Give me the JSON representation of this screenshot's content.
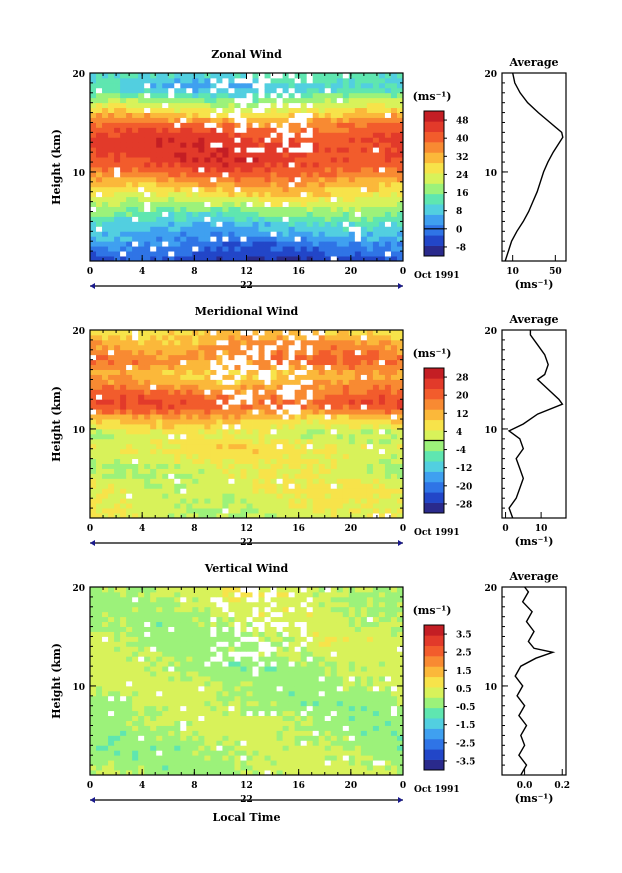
{
  "chart_data": [
    {
      "type": "heatmap",
      "title": "Zonal Wind",
      "ylabel": "Height (km)",
      "xticks": [
        "0",
        "4",
        "8",
        "12",
        "16",
        "20",
        "0"
      ],
      "yticks": [
        "10",
        "20"
      ],
      "xlim": [
        0,
        24
      ],
      "ylim": [
        1,
        20
      ],
      "date_label": "22",
      "month_label": "Oct 1991",
      "colorbar": {
        "unit": "(ms⁻¹)",
        "labels": [
          "48",
          "40",
          "32",
          "24",
          "16",
          "8",
          "0",
          "-8"
        ],
        "min": -12,
        "max": 52,
        "zero_line": 0,
        "colors": [
          "#2a2a8c",
          "#2246c8",
          "#2f74e6",
          "#3fa0f0",
          "#52cfe0",
          "#5fe6b0",
          "#9cf27a",
          "#d8f25a",
          "#f7e34a",
          "#fbb83a",
          "#f88a32",
          "#f25c2c",
          "#e23a2a",
          "#c41e24"
        ]
      },
      "layers": [
        {
          "height": 20,
          "value": 12
        },
        {
          "height": 18.5,
          "value": 8
        },
        {
          "height": 17.5,
          "value": 16
        },
        {
          "height": 16,
          "value": 28
        },
        {
          "height": 14.5,
          "value": 40
        },
        {
          "height": 13,
          "value": 45
        },
        {
          "height": 11,
          "value": 44
        },
        {
          "height": 9,
          "value": 34
        },
        {
          "height": 7,
          "value": 22
        },
        {
          "height": 5,
          "value": 10
        },
        {
          "height": 3,
          "value": 2
        },
        {
          "height": 1,
          "value": -6
        }
      ],
      "average_profile": {
        "title": "Average",
        "xlabel": "(ms⁻¹)",
        "xticks": [
          10,
          50
        ],
        "xlim": [
          0,
          60
        ],
        "points": [
          {
            "height": 1,
            "value": 3
          },
          {
            "height": 2,
            "value": 6
          },
          {
            "height": 3,
            "value": 9
          },
          {
            "height": 4,
            "value": 14
          },
          {
            "height": 5,
            "value": 20
          },
          {
            "height": 6,
            "value": 25
          },
          {
            "height": 7,
            "value": 29
          },
          {
            "height": 8,
            "value": 33
          },
          {
            "height": 9,
            "value": 36
          },
          {
            "height": 10,
            "value": 39
          },
          {
            "height": 11,
            "value": 43
          },
          {
            "height": 12,
            "value": 48
          },
          {
            "height": 13,
            "value": 54
          },
          {
            "height": 13.5,
            "value": 57
          },
          {
            "height": 14,
            "value": 56
          },
          {
            "height": 15,
            "value": 45
          },
          {
            "height": 16,
            "value": 34
          },
          {
            "height": 17,
            "value": 24
          },
          {
            "height": 18,
            "value": 17
          },
          {
            "height": 19,
            "value": 12
          },
          {
            "height": 20,
            "value": 10
          }
        ]
      }
    },
    {
      "type": "heatmap",
      "title": "Meridional Wind",
      "ylabel": "Height (km)",
      "xticks": [
        "0",
        "4",
        "8",
        "12",
        "16",
        "20",
        "0"
      ],
      "yticks": [
        "10",
        "20"
      ],
      "xlim": [
        0,
        24
      ],
      "ylim": [
        1,
        20
      ],
      "date_label": "22",
      "month_label": "Oct 1991",
      "colorbar": {
        "unit": "(ms⁻¹)",
        "labels": [
          "28",
          "20",
          "12",
          "4",
          "-4",
          "-12",
          "-20",
          "-28"
        ],
        "min": -32,
        "max": 32,
        "zero_line": 0,
        "colors": [
          "#2a2a8c",
          "#2246c8",
          "#2f74e6",
          "#3fa0f0",
          "#52cfe0",
          "#5fe6b0",
          "#9cf27a",
          "#d8f25a",
          "#f7e34a",
          "#fbb83a",
          "#f88a32",
          "#f25c2c",
          "#e23a2a",
          "#c41e24"
        ]
      },
      "layers": [
        {
          "height": 20,
          "value": 8
        },
        {
          "height": 18.5,
          "value": 14
        },
        {
          "height": 17,
          "value": 18
        },
        {
          "height": 15.5,
          "value": 10
        },
        {
          "height": 14,
          "value": 16
        },
        {
          "height": 12.5,
          "value": 22
        },
        {
          "height": 11,
          "value": 10
        },
        {
          "height": 9.5,
          "value": 2
        },
        {
          "height": 8,
          "value": 6
        },
        {
          "height": 6,
          "value": 2
        },
        {
          "height": 4,
          "value": 4
        },
        {
          "height": 1,
          "value": 2
        }
      ],
      "average_profile": {
        "title": "Average",
        "xlabel": "(ms⁻¹)",
        "xticks": [
          0,
          10
        ],
        "xlim": [
          -1,
          17
        ],
        "points": [
          {
            "height": 1,
            "value": 2
          },
          {
            "height": 2,
            "value": 1
          },
          {
            "height": 3,
            "value": 3
          },
          {
            "height": 4,
            "value": 4
          },
          {
            "height": 5,
            "value": 5
          },
          {
            "height": 6,
            "value": 4
          },
          {
            "height": 7,
            "value": 3
          },
          {
            "height": 8,
            "value": 5
          },
          {
            "height": 9,
            "value": 4
          },
          {
            "height": 9.8,
            "value": 1
          },
          {
            "height": 10.5,
            "value": 5
          },
          {
            "height": 11.5,
            "value": 9
          },
          {
            "height": 12.5,
            "value": 16
          },
          {
            "height": 13,
            "value": 15
          },
          {
            "height": 14,
            "value": 12
          },
          {
            "height": 15,
            "value": 9
          },
          {
            "height": 15.5,
            "value": 11
          },
          {
            "height": 16.5,
            "value": 12
          },
          {
            "height": 17.5,
            "value": 11
          },
          {
            "height": 18.5,
            "value": 9
          },
          {
            "height": 19.5,
            "value": 7
          },
          {
            "height": 20,
            "value": 7
          }
        ]
      }
    },
    {
      "type": "heatmap",
      "title": "Vertical Wind",
      "ylabel": "Height (km)",
      "xlabel": "Local Time",
      "xticks": [
        "0",
        "4",
        "8",
        "12",
        "16",
        "20",
        "0"
      ],
      "yticks": [
        "10",
        "20"
      ],
      "xlim": [
        0,
        24
      ],
      "ylim": [
        1,
        20
      ],
      "date_label": "22",
      "month_label": "Oct 1991",
      "colorbar": {
        "unit": "(ms⁻¹)",
        "labels": [
          "3.5",
          "2.5",
          "1.5",
          "0.5",
          "-0.5",
          "-1.5",
          "-2.5",
          "-3.5"
        ],
        "min": -4,
        "max": 4,
        "colors": [
          "#2a2a8c",
          "#2246c8",
          "#2f74e6",
          "#3fa0f0",
          "#52cfe0",
          "#5fe6b0",
          "#9cf27a",
          "#d8f25a",
          "#f7e34a",
          "#fbb83a",
          "#f88a32",
          "#f25c2c",
          "#e23a2a",
          "#c41e24"
        ]
      },
      "layers": [
        {
          "height": 20,
          "value": 0.2
        },
        {
          "height": 18,
          "value": 0.1
        },
        {
          "height": 16,
          "value": 0.0
        },
        {
          "height": 14,
          "value": 0.1
        },
        {
          "height": 12,
          "value": -0.1
        },
        {
          "height": 10,
          "value": 0.0
        },
        {
          "height": 8,
          "value": -0.1
        },
        {
          "height": 6,
          "value": 0.0
        },
        {
          "height": 4,
          "value": -0.1
        },
        {
          "height": 1,
          "value": 0.0
        }
      ],
      "average_profile": {
        "title": "Average",
        "xlabel": "(ms⁻¹)",
        "xticks": [
          0.0,
          0.2
        ],
        "xtick_labels": [
          "0.0",
          "0.2"
        ],
        "xlim": [
          -0.12,
          0.22
        ],
        "points": [
          {
            "height": 1,
            "value": -0.02
          },
          {
            "height": 2,
            "value": 0.01
          },
          {
            "height": 3,
            "value": -0.03
          },
          {
            "height": 4,
            "value": 0.0
          },
          {
            "height": 5,
            "value": -0.02
          },
          {
            "height": 6,
            "value": 0.01
          },
          {
            "height": 7,
            "value": -0.03
          },
          {
            "height": 8,
            "value": 0.0
          },
          {
            "height": 9,
            "value": -0.04
          },
          {
            "height": 10,
            "value": -0.01
          },
          {
            "height": 11,
            "value": -0.05
          },
          {
            "height": 12,
            "value": -0.02
          },
          {
            "height": 12.8,
            "value": 0.06
          },
          {
            "height": 13.4,
            "value": 0.15
          },
          {
            "height": 13.8,
            "value": 0.05
          },
          {
            "height": 14.5,
            "value": 0.02
          },
          {
            "height": 15.5,
            "value": 0.05
          },
          {
            "height": 16.5,
            "value": 0.01
          },
          {
            "height": 17.5,
            "value": 0.04
          },
          {
            "height": 18.5,
            "value": -0.01
          },
          {
            "height": 19.5,
            "value": 0.02
          },
          {
            "height": 20,
            "value": 0.0
          }
        ]
      }
    }
  ]
}
